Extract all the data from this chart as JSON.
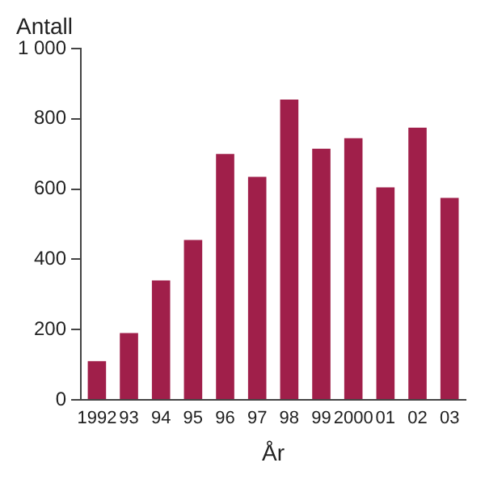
{
  "chart_data": {
    "type": "bar",
    "ylabel": "Antall",
    "xlabel": "År",
    "categories": [
      "1992",
      "93",
      "94",
      "95",
      "96",
      "97",
      "98",
      "99",
      "2000",
      "01",
      "02",
      "03"
    ],
    "values": [
      110,
      190,
      340,
      455,
      700,
      635,
      855,
      715,
      745,
      605,
      775,
      575
    ],
    "color": "#a01f4a",
    "ylim": [
      0,
      1000
    ],
    "yticks": [
      0,
      200,
      400,
      600,
      800,
      {
        "value": 1000,
        "label": "1 000"
      }
    ],
    "grid": false,
    "legend": false
  }
}
